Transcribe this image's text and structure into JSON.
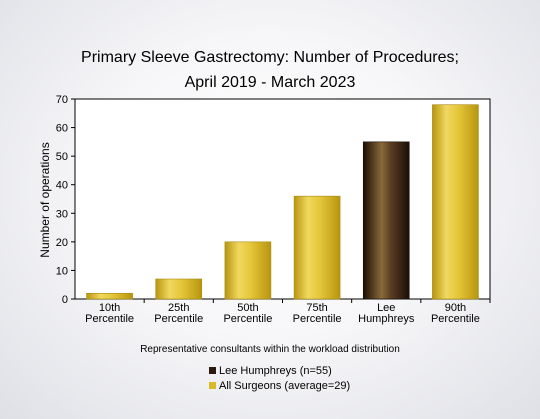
{
  "chart_data": {
    "type": "bar",
    "title_lines": [
      "Primary Sleeve Gastrectomy: Number of Procedures;",
      "April 2019 - March 2023"
    ],
    "xlabel": "Representative consultants within the workload distribution",
    "ylabel": "Number of operations",
    "ylim": [
      0,
      70
    ],
    "yticks": [
      0,
      10,
      20,
      30,
      40,
      50,
      60,
      70
    ],
    "grid": false,
    "legend_position": "bottom",
    "categories": [
      [
        "10th",
        "Percentile"
      ],
      [
        "25th",
        "Percentile"
      ],
      [
        "50th",
        "Percentile"
      ],
      [
        "75th",
        "Percentile"
      ],
      [
        "Lee",
        "Humphreys"
      ],
      [
        "90th",
        "Percentile"
      ]
    ],
    "values": [
      2,
      7,
      20,
      36,
      55,
      68
    ],
    "bar_series": [
      "All Surgeons",
      "All Surgeons",
      "All Surgeons",
      "All Surgeons",
      "Lee Humphreys",
      "All Surgeons"
    ],
    "legend": [
      {
        "label": "Lee Humphreys (n=55)",
        "color": "#2a1a0f"
      },
      {
        "label": "All Surgeons (average=29)",
        "color": "#d9b928"
      }
    ],
    "colors": {
      "all_surgeons": "#d9b928",
      "lee_humphreys": "#2a1a0f"
    }
  }
}
